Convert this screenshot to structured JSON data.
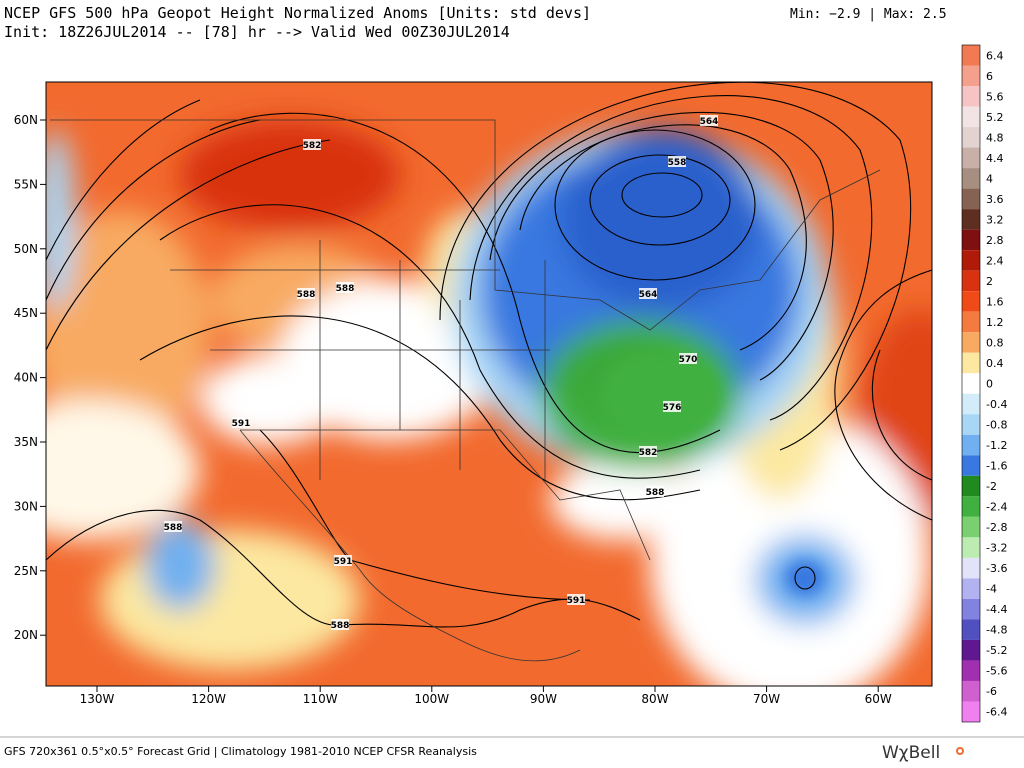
{
  "header": {
    "title": "NCEP GFS 500 hPa Geopot Height Normalized Anoms [Units: std devs]",
    "init": "Init: 18Z26JUL2014 -- [78] hr --> Valid Wed 00Z30JUL2014",
    "minmax": "Min:  −2.9 | Max:   2.5"
  },
  "map": {
    "lat_labels": [
      "60N",
      "55N",
      "50N",
      "45N",
      "40N",
      "35N",
      "30N",
      "25N",
      "20N"
    ],
    "lon_labels": [
      "130W",
      "120W",
      "110W",
      "100W",
      "90W",
      "80W",
      "70W",
      "60W"
    ],
    "contour_labels": [
      "582",
      "588",
      "588",
      "591",
      "588",
      "591",
      "588",
      "591",
      "564",
      "558",
      "564",
      "570",
      "576",
      "582",
      "588"
    ]
  },
  "colorbar": [
    {
      "label": "6.4",
      "color": "#f27a52"
    },
    {
      "label": "6",
      "color": "#f4a08c"
    },
    {
      "label": "5.6",
      "color": "#f6c4c4"
    },
    {
      "label": "5.2",
      "color": "#f2e4e4"
    },
    {
      "label": "4.8",
      "color": "#e2d2d0"
    },
    {
      "label": "4.4",
      "color": "#c8b0a8"
    },
    {
      "label": "4",
      "color": "#a68e80"
    },
    {
      "label": "3.6",
      "color": "#866252"
    },
    {
      "label": "3.2",
      "color": "#5e2e20"
    },
    {
      "label": "2.8",
      "color": "#7e1010"
    },
    {
      "label": "2.4",
      "color": "#b01a08"
    },
    {
      "label": "2",
      "color": "#d83210"
    },
    {
      "label": "1.6",
      "color": "#f04a18"
    },
    {
      "label": "1.2",
      "color": "#f57a40"
    },
    {
      "label": "0.8",
      "color": "#f8aa62"
    },
    {
      "label": "0.4",
      "color": "#fce8a0"
    },
    {
      "label": "0",
      "color": "#ffffff"
    },
    {
      "label": "-0.4",
      "color": "#d2ecfa"
    },
    {
      "label": "-0.8",
      "color": "#a8d6f5"
    },
    {
      "label": "-1.2",
      "color": "#70b0f0"
    },
    {
      "label": "-1.6",
      "color": "#3878e0"
    },
    {
      "label": "-2",
      "color": "#208a20"
    },
    {
      "label": "-2.4",
      "color": "#40b040"
    },
    {
      "label": "-2.8",
      "color": "#7ad070"
    },
    {
      "label": "-3.2",
      "color": "#bcecb2"
    },
    {
      "label": "-3.6",
      "color": "#e2e2f8"
    },
    {
      "label": "-4",
      "color": "#b2b2f0"
    },
    {
      "label": "-4.4",
      "color": "#8282e0"
    },
    {
      "label": "-4.8",
      "color": "#5050c0"
    },
    {
      "label": "-5.2",
      "color": "#601890"
    },
    {
      "label": "-5.6",
      "color": "#a030b0"
    },
    {
      "label": "-6",
      "color": "#d060d0"
    },
    {
      "label": "-6.4",
      "color": "#f080f0"
    }
  ],
  "footer": {
    "text": "GFS 720x361 0.5°x0.5° Forecast Grid | Climatology 1981-2010 NCEP CFSR Reanalysis",
    "logo": "WχBell"
  }
}
